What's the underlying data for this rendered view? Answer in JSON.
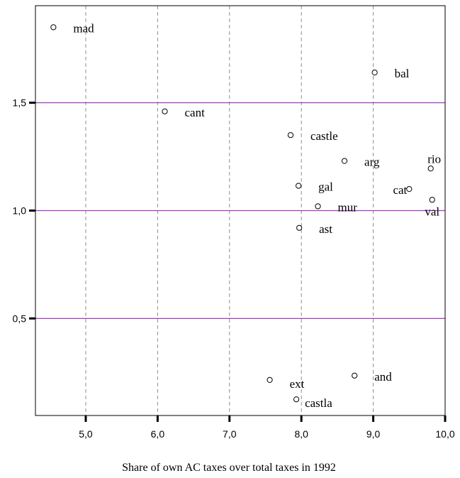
{
  "chart_data": {
    "type": "scatter",
    "xlabel": "Share of own AC taxes over total taxes in 1992",
    "ylabel": "",
    "xlim": [
      4.3,
      10.0
    ],
    "ylim": [
      0.05,
      1.95
    ],
    "x_ticks": [
      5.0,
      6.0,
      7.0,
      8.0,
      9.0,
      10.0
    ],
    "x_tick_labels": [
      "5,0",
      "6,0",
      "7,0",
      "8,0",
      "9,0",
      "10,0"
    ],
    "y_ticks": [
      0.5,
      1.0,
      1.5
    ],
    "y_tick_labels": [
      "0,5",
      "1,0",
      "1,5"
    ],
    "grid": {
      "x": "dashed vertical",
      "y": "solid horizontal at ticks"
    },
    "colors": {
      "grid_h": "#8a4fa0",
      "grid_v": "#8c8c8c",
      "axis": "#000000",
      "point": "#000000"
    },
    "points": [
      {
        "label": "mad",
        "x": 4.55,
        "y": 1.85
      },
      {
        "label": "bal",
        "x": 9.02,
        "y": 1.64
      },
      {
        "label": "cant",
        "x": 6.1,
        "y": 1.46
      },
      {
        "label": "castle",
        "x": 7.85,
        "y": 1.35
      },
      {
        "label": "arg",
        "x": 8.6,
        "y": 1.23
      },
      {
        "label": "rio",
        "x": 9.8,
        "y": 1.195
      },
      {
        "label": "gal",
        "x": 7.96,
        "y": 1.115
      },
      {
        "label": "cat",
        "x": 9.5,
        "y": 1.1
      },
      {
        "label": "val",
        "x": 9.82,
        "y": 1.05
      },
      {
        "label": "mur",
        "x": 8.23,
        "y": 1.02
      },
      {
        "label": "ast",
        "x": 7.97,
        "y": 0.92
      },
      {
        "label": "and",
        "x": 8.74,
        "y": 0.235
      },
      {
        "label": "ext",
        "x": 7.56,
        "y": 0.215
      },
      {
        "label": "castla",
        "x": 7.93,
        "y": 0.125
      }
    ]
  }
}
